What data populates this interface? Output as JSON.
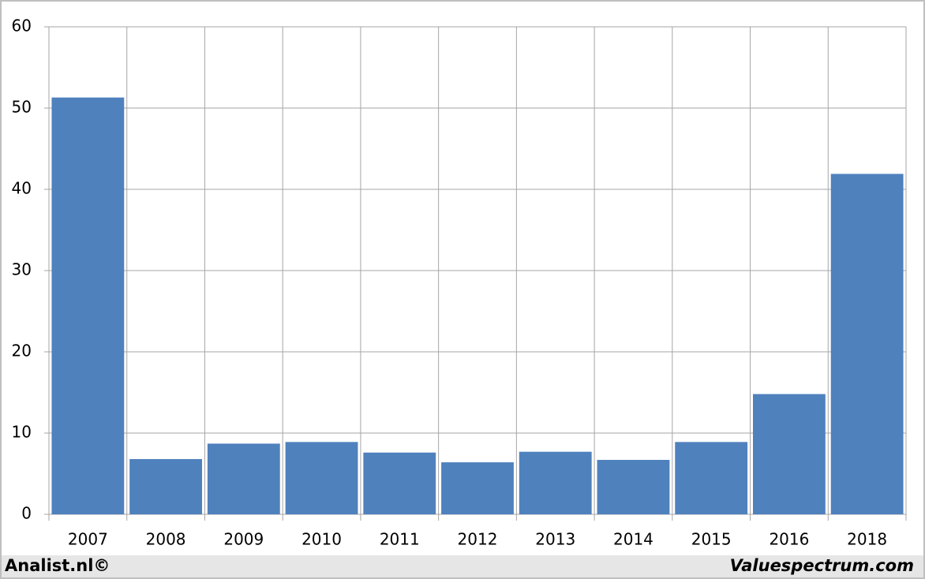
{
  "chart_data": {
    "type": "bar",
    "categories": [
      "2007",
      "2008",
      "2009",
      "2010",
      "2011",
      "2012",
      "2013",
      "2014",
      "2015",
      "2016",
      "2018"
    ],
    "values": [
      51.3,
      6.8,
      8.7,
      8.9,
      7.6,
      6.4,
      7.7,
      6.7,
      8.9,
      14.8,
      41.9
    ],
    "color": "#4f81bd",
    "ylim": [
      0,
      60
    ],
    "yticks": [
      0,
      10,
      20,
      30,
      40,
      50,
      60
    ],
    "grid": true,
    "source": "Analist.nl©",
    "credit": "Valuespectrum.com"
  }
}
